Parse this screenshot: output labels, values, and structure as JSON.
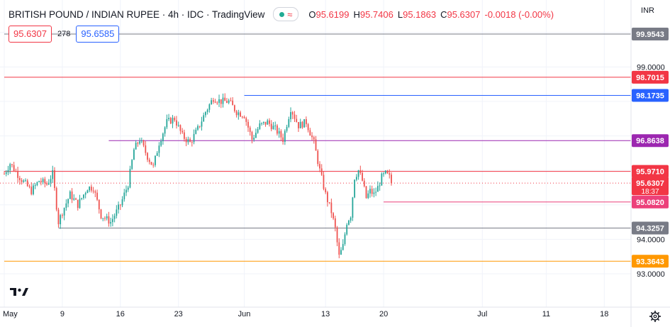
{
  "header": {
    "title": "BRITISH POUND / INDIAN RUPEE · 4h · IDC · TradingView",
    "ohlc": [
      {
        "key": "O",
        "value": "95.6199"
      },
      {
        "key": "H",
        "value": "95.7406"
      },
      {
        "key": "L",
        "value": "95.1863"
      },
      {
        "key": "C",
        "value": "95.6307"
      }
    ],
    "change": "-0.0018 (-0.00%)"
  },
  "quote": {
    "bid": "95.6307",
    "spread": "278",
    "ask": "95.6585"
  },
  "currency_label": "INR",
  "colors": {
    "up": "#26a69a",
    "down": "#ef5350",
    "grid": "#f0f3fa",
    "axis_text": "#131722",
    "red_line": "#f23645",
    "blue_line": "#2962ff",
    "purple": "#9c27b0",
    "pink": "#ec407a",
    "orange": "#ff9800",
    "gray_line": "#787b86"
  },
  "chart_data": {
    "type": "candlestick",
    "timeframe": "4h",
    "y_ticks": [
      {
        "value": 93.0,
        "label": "93.0000"
      },
      {
        "value": 94.0,
        "label": "94.0000"
      },
      {
        "value": 99.0,
        "label": "99.0000"
      }
    ],
    "x_ticks": [
      {
        "label": "May",
        "index": 0
      },
      {
        "label": "9",
        "index": 30
      },
      {
        "label": "16",
        "index": 60
      },
      {
        "label": "23",
        "index": 90
      },
      {
        "label": "Jun",
        "index": 124
      },
      {
        "label": "13",
        "index": 166
      },
      {
        "label": "20",
        "index": 196
      },
      {
        "label": "Jul",
        "index": 247
      },
      {
        "label": "11",
        "index": 280
      },
      {
        "label": "18",
        "index": 310
      }
    ],
    "levels": [
      {
        "value": 99.9543,
        "label": "99.9543",
        "color": "#787b86",
        "start_index": 0
      },
      {
        "value": 98.7015,
        "label": "98.7015",
        "color": "#f23645",
        "start_index": 0
      },
      {
        "value": 98.1735,
        "label": "98.1735",
        "color": "#2962ff",
        "start_index": 124
      },
      {
        "value": 96.8638,
        "label": "96.8638",
        "color": "#9c27b0",
        "start_index": 54
      },
      {
        "value": 95.971,
        "label": "95.9710",
        "color": "#f23645",
        "start_index": 0
      },
      {
        "value": 95.082,
        "label": "95.0820",
        "color": "#ec407a",
        "start_index": 196
      },
      {
        "value": 94.3257,
        "label": "94.3257",
        "color": "#787b86",
        "start_index": 28
      },
      {
        "value": 93.3643,
        "label": "93.3643",
        "color": "#ff9800",
        "start_index": 0
      }
    ],
    "last_price": {
      "value": 95.6307,
      "label": "95.6307",
      "countdown": "18:37",
      "color": "#f23645"
    },
    "anchors": [
      [
        0,
        95.9
      ],
      [
        3,
        96.2
      ],
      [
        8,
        95.8
      ],
      [
        14,
        95.4
      ],
      [
        18,
        95.7
      ],
      [
        22,
        95.6
      ],
      [
        25,
        95.9
      ],
      [
        28,
        94.5
      ],
      [
        30,
        94.8
      ],
      [
        34,
        95.3
      ],
      [
        38,
        95.0
      ],
      [
        43,
        95.5
      ],
      [
        46,
        95.5
      ],
      [
        50,
        94.7
      ],
      [
        55,
        94.5
      ],
      [
        60,
        95.0
      ],
      [
        64,
        95.6
      ],
      [
        67,
        96.6
      ],
      [
        70,
        96.9
      ],
      [
        74,
        96.4
      ],
      [
        77,
        96.1
      ],
      [
        80,
        96.8
      ],
      [
        84,
        97.4
      ],
      [
        88,
        97.5
      ],
      [
        92,
        97.0
      ],
      [
        96,
        96.8
      ],
      [
        100,
        97.2
      ],
      [
        104,
        97.7
      ],
      [
        108,
        98.1
      ],
      [
        112,
        98.0
      ],
      [
        116,
        98.0
      ],
      [
        120,
        97.7
      ],
      [
        124,
        97.6
      ],
      [
        128,
        96.9
      ],
      [
        132,
        97.3
      ],
      [
        136,
        97.4
      ],
      [
        140,
        97.2
      ],
      [
        144,
        96.9
      ],
      [
        148,
        97.8
      ],
      [
        152,
        97.3
      ],
      [
        156,
        97.4
      ],
      [
        160,
        96.8
      ],
      [
        163,
        96.0
      ],
      [
        166,
        95.3
      ],
      [
        169,
        94.8
      ],
      [
        171,
        94.3
      ],
      [
        173,
        93.5
      ],
      [
        175,
        93.8
      ],
      [
        177,
        94.5
      ],
      [
        179,
        94.7
      ],
      [
        181,
        95.8
      ],
      [
        183,
        96.0
      ],
      [
        185,
        95.7
      ],
      [
        187,
        95.2
      ],
      [
        189,
        95.4
      ],
      [
        191,
        95.3
      ],
      [
        193,
        95.5
      ],
      [
        195,
        95.8
      ],
      [
        197,
        95.9
      ],
      [
        199,
        95.8
      ],
      [
        200,
        95.6307
      ]
    ]
  }
}
